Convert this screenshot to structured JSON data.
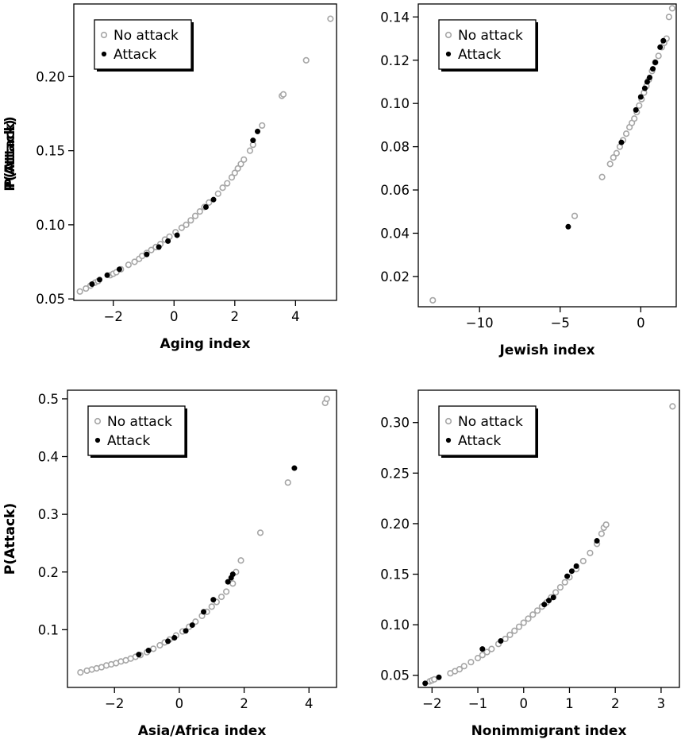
{
  "colors": {
    "no_attack": "#a6a6a6",
    "attack": "#000000"
  },
  "chart_data": [
    {
      "type": "scatter",
      "xlabel": "Aging index",
      "ylabel": "P(Attack)",
      "xlim": [
        -3.3,
        5.35
      ],
      "ylim": [
        0.049,
        0.249
      ],
      "xticks": [
        -2,
        0,
        2,
        4
      ],
      "xtick_labels": [
        "−2",
        "0",
        "2",
        "4"
      ],
      "yticks": [
        0.05,
        0.1,
        0.15,
        0.2
      ],
      "ytick_labels": [
        "0.05",
        "0.10",
        "0.15",
        "0.20"
      ],
      "legend": {
        "placement": "top-left",
        "entries": [
          "No attack",
          "Attack"
        ]
      },
      "grid": false,
      "series": [
        {
          "name": "No attack",
          "x": [
            -3.1,
            -2.9,
            -2.75,
            -2.6,
            -2.5,
            -2.1,
            -2.0,
            -1.9,
            -1.75,
            -1.5,
            -1.3,
            -1.15,
            -1.05,
            -0.9,
            -0.75,
            -0.6,
            -0.45,
            -0.3,
            -0.15,
            0.05,
            0.25,
            0.4,
            0.55,
            0.7,
            0.85,
            1.0,
            1.15,
            1.45,
            1.6,
            1.75,
            1.9,
            2.0,
            2.1,
            2.2,
            2.3,
            2.5,
            2.6,
            2.9,
            3.55,
            3.6,
            4.35,
            5.15
          ],
          "y": [
            0.055,
            0.057,
            0.059,
            0.061,
            0.062,
            0.066,
            0.067,
            0.068,
            0.07,
            0.073,
            0.075,
            0.077,
            0.079,
            0.081,
            0.083,
            0.085,
            0.087,
            0.09,
            0.092,
            0.095,
            0.098,
            0.1,
            0.103,
            0.106,
            0.109,
            0.112,
            0.115,
            0.121,
            0.125,
            0.128,
            0.132,
            0.135,
            0.138,
            0.141,
            0.144,
            0.15,
            0.154,
            0.167,
            0.187,
            0.188,
            0.211,
            0.239
          ]
        },
        {
          "name": "Attack",
          "x": [
            -2.45,
            -2.7,
            -2.2,
            -1.8,
            -0.9,
            -0.5,
            -0.2,
            0.1,
            1.05,
            1.3,
            2.6,
            2.75
          ],
          "y": [
            0.063,
            0.06,
            0.066,
            0.07,
            0.08,
            0.085,
            0.089,
            0.093,
            0.112,
            0.117,
            0.157,
            0.163
          ]
        }
      ]
    },
    {
      "type": "scatter",
      "xlabel": "Jewish index",
      "ylabel": "P(Attack)",
      "xlim": [
        -13.8,
        2.2
      ],
      "ylim": [
        0.006,
        0.146
      ],
      "xticks": [
        -10,
        -5,
        0
      ],
      "xtick_labels": [
        "−10",
        "−5",
        "0"
      ],
      "yticks": [
        0.02,
        0.04,
        0.06,
        0.08,
        0.1,
        0.12,
        0.14
      ],
      "ytick_labels": [
        "0.02",
        "0.04",
        "0.06",
        "0.08",
        "0.10",
        "0.12",
        "0.14"
      ],
      "legend": {
        "placement": "top-left",
        "entries": [
          "No attack",
          "Attack"
        ]
      },
      "grid": false,
      "series": [
        {
          "name": "No attack",
          "x": [
            -12.9,
            -4.1,
            -2.4,
            -1.9,
            -1.7,
            -1.5,
            -1.3,
            -1.1,
            -0.9,
            -0.7,
            -0.55,
            -0.4,
            -0.25,
            -0.1,
            0.05,
            0.2,
            0.35,
            0.5,
            0.7,
            0.9,
            1.1,
            1.3,
            1.45,
            1.6,
            1.75,
            1.95
          ],
          "y": [
            0.009,
            0.048,
            0.066,
            0.072,
            0.075,
            0.077,
            0.08,
            0.083,
            0.086,
            0.089,
            0.091,
            0.093,
            0.096,
            0.099,
            0.102,
            0.105,
            0.108,
            0.111,
            0.115,
            0.119,
            0.122,
            0.126,
            0.128,
            0.13,
            0.14,
            0.144
          ]
        },
        {
          "name": "Attack",
          "x": [
            -4.5,
            -1.2,
            -0.3,
            0.0,
            0.25,
            0.4,
            0.55,
            0.75,
            0.9,
            1.2,
            1.4
          ],
          "y": [
            0.043,
            0.082,
            0.097,
            0.103,
            0.107,
            0.11,
            0.112,
            0.116,
            0.119,
            0.126,
            0.129
          ]
        }
      ]
    },
    {
      "type": "scatter",
      "xlabel": "Asia/Africa index",
      "ylabel": "P(Attack)",
      "xlim": [
        -3.45,
        4.85
      ],
      "ylim": [
        0.0,
        0.515
      ],
      "xticks": [
        -2,
        0,
        2,
        4
      ],
      "xtick_labels": [
        "−2",
        "0",
        "2",
        "4"
      ],
      "yticks": [
        0.1,
        0.2,
        0.3,
        0.4,
        0.5
      ],
      "ytick_labels": [
        "0.1",
        "0.2",
        "0.3",
        "0.4",
        "0.5"
      ],
      "legend": {
        "placement": "top-left",
        "entries": [
          "No attack",
          "Attack"
        ]
      },
      "grid": false,
      "series": [
        {
          "name": "No attack",
          "x": [
            -3.05,
            -2.85,
            -2.7,
            -2.55,
            -2.4,
            -2.25,
            -2.1,
            -1.95,
            -1.8,
            -1.65,
            -1.5,
            -1.35,
            -1.2,
            -1.0,
            -0.8,
            -0.6,
            -0.45,
            -0.3,
            -0.1,
            0.1,
            0.3,
            0.5,
            0.7,
            0.85,
            1.0,
            1.15,
            1.3,
            1.45,
            1.65,
            1.75,
            1.9,
            2.5,
            3.35,
            4.5,
            4.55
          ],
          "y": [
            0.026,
            0.029,
            0.031,
            0.033,
            0.035,
            0.038,
            0.04,
            0.042,
            0.045,
            0.047,
            0.05,
            0.053,
            0.056,
            0.061,
            0.067,
            0.073,
            0.078,
            0.083,
            0.09,
            0.097,
            0.105,
            0.114,
            0.124,
            0.131,
            0.14,
            0.148,
            0.157,
            0.166,
            0.18,
            0.2,
            0.22,
            0.268,
            0.355,
            0.493,
            0.5
          ]
        },
        {
          "name": "Attack",
          "x": [
            -1.25,
            -0.95,
            -0.35,
            -0.15,
            0.2,
            0.4,
            0.75,
            1.05,
            1.5,
            1.6,
            1.65,
            3.55
          ],
          "y": [
            0.057,
            0.064,
            0.08,
            0.086,
            0.098,
            0.108,
            0.131,
            0.152,
            0.183,
            0.19,
            0.196,
            0.38
          ]
        }
      ]
    },
    {
      "type": "scatter",
      "xlabel": "Nonimmigrant index",
      "ylabel": "P(Attack)",
      "xlim": [
        -2.3,
        3.4
      ],
      "ylim": [
        0.038,
        0.332
      ],
      "xticks": [
        -2,
        -1,
        0,
        1,
        2,
        3
      ],
      "xtick_labels": [
        "−2",
        "−1",
        "0",
        "1",
        "2",
        "3"
      ],
      "yticks": [
        0.05,
        0.1,
        0.15,
        0.2,
        0.25,
        0.3
      ],
      "ytick_labels": [
        "0.05",
        "0.10",
        "0.15",
        "0.20",
        "0.25",
        "0.30"
      ],
      "legend": {
        "placement": "top-left",
        "entries": [
          "No attack",
          "Attack"
        ]
      },
      "grid": false,
      "series": [
        {
          "name": "No attack",
          "x": [
            -2.05,
            -2.0,
            -1.95,
            -1.6,
            -1.5,
            -1.4,
            -1.3,
            -1.15,
            -1.0,
            -0.9,
            -0.8,
            -0.7,
            -0.55,
            -0.4,
            -0.3,
            -0.2,
            -0.1,
            0.0,
            0.1,
            0.2,
            0.3,
            0.4,
            0.5,
            0.6,
            0.7,
            0.8,
            0.9,
            1.0,
            1.15,
            1.3,
            1.45,
            1.6,
            1.7,
            1.75,
            1.8,
            3.25
          ],
          "y": [
            0.044,
            0.045,
            0.046,
            0.052,
            0.054,
            0.056,
            0.059,
            0.063,
            0.067,
            0.07,
            0.073,
            0.076,
            0.081,
            0.086,
            0.09,
            0.094,
            0.098,
            0.102,
            0.106,
            0.11,
            0.114,
            0.118,
            0.122,
            0.127,
            0.132,
            0.137,
            0.142,
            0.147,
            0.155,
            0.163,
            0.171,
            0.18,
            0.19,
            0.196,
            0.199,
            0.316
          ]
        },
        {
          "name": "Attack",
          "x": [
            -2.15,
            -1.85,
            -0.9,
            -0.5,
            0.45,
            0.55,
            0.65,
            0.95,
            1.05,
            1.15,
            1.6
          ],
          "y": [
            0.042,
            0.048,
            0.076,
            0.084,
            0.12,
            0.124,
            0.127,
            0.148,
            0.153,
            0.158,
            0.183
          ]
        }
      ]
    }
  ]
}
